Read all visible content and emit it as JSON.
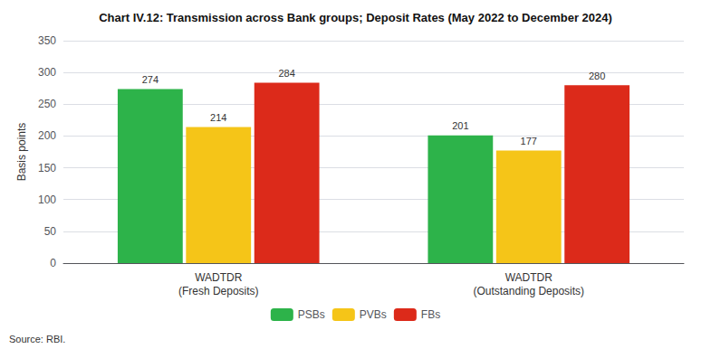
{
  "chart_data": {
    "type": "bar",
    "title": "Chart IV.12: Transmission across Bank groups; Deposit Rates (May 2022 to December 2024)",
    "ylabel": "Basis points",
    "annotations": [
      "Source: RBI."
    ],
    "categories": [
      "WADTDR\n(Fresh Deposits)",
      "WADTDR\n(Outstanding Deposits)"
    ],
    "series": [
      {
        "name": "PSBs",
        "color": "#2db34a",
        "values": [
          274,
          201
        ]
      },
      {
        "name": "PVBs",
        "color": "#f5c518",
        "values": [
          214,
          177
        ]
      },
      {
        "name": "FBs",
        "color": "#dc2a1a",
        "values": [
          284,
          280
        ]
      }
    ],
    "ylim": [
      0,
      350
    ],
    "yticks": [
      0,
      50,
      100,
      150,
      200,
      250,
      300,
      350
    ],
    "grid": true,
    "legend": "bottom",
    "data_labels": true
  }
}
